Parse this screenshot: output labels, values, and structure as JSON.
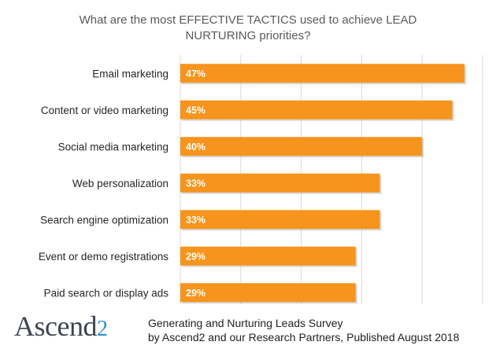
{
  "chart_data": {
    "type": "bar",
    "orientation": "horizontal",
    "title": "What are the most EFFECTIVE TACTICS used to achieve LEAD NURTURING priorities?",
    "title_lines": [
      "What are the most EFFECTIVE TACTICS used to achieve LEAD",
      "NURTURING priorities?"
    ],
    "categories": [
      "Email marketing",
      "Content or video marketing",
      "Social media marketing",
      "Web personalization",
      "Search engine optimization",
      "Event or demo registrations",
      "Paid search or display ads"
    ],
    "values": [
      47,
      45,
      40,
      33,
      33,
      29,
      29
    ],
    "data_labels": [
      "47%",
      "45%",
      "40%",
      "33%",
      "33%",
      "29%",
      "29%"
    ],
    "xlim": [
      0,
      50
    ],
    "grid": true,
    "bar_color": "#f7941d"
  },
  "footer": {
    "logo_main": "Ascend",
    "logo_suffix": "2",
    "line1": "Generating and Nurturing Leads Survey",
    "line2": "by Ascend2 and our Research Partners, Published August 2018"
  }
}
